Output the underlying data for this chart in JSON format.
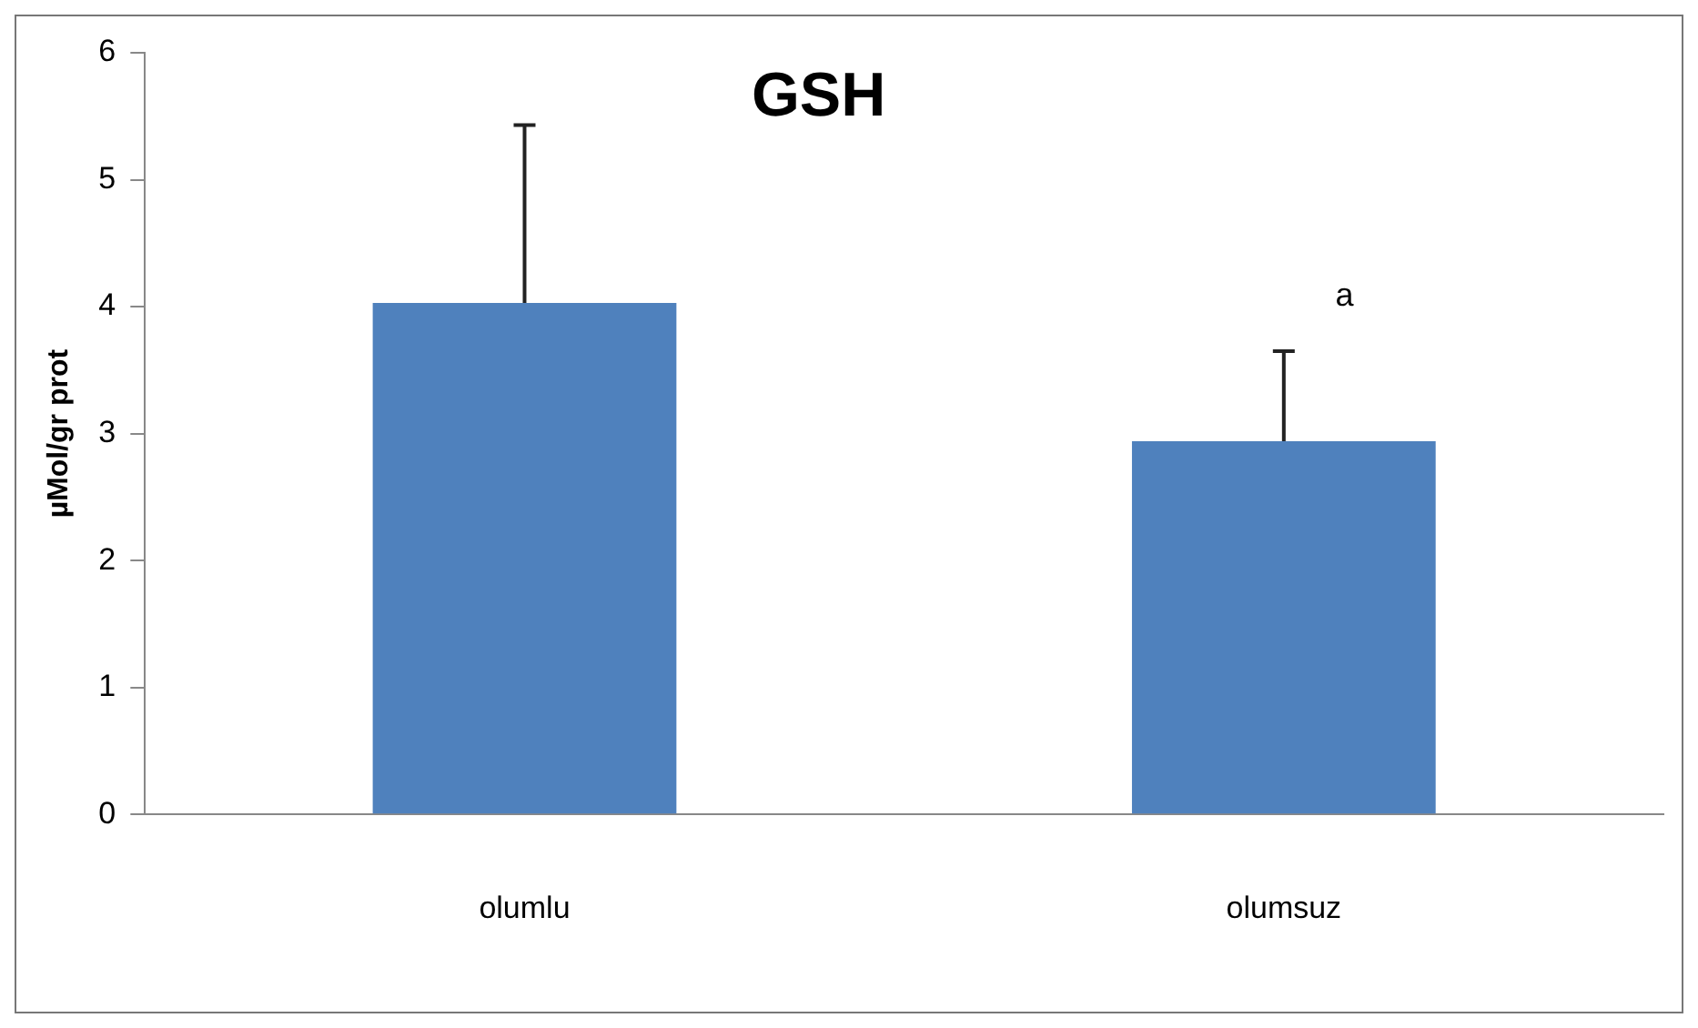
{
  "chart_data": {
    "type": "bar",
    "title": "GSH",
    "ylabel": "µMol/gr prot",
    "categories": [
      "olumlu",
      "olumsuz"
    ],
    "values": [
      4.03,
      2.94
    ],
    "errors": [
      [
        4.03,
        5.43
      ],
      [
        2.94,
        3.65
      ]
    ],
    "color": "#4f81bd",
    "ylim": [
      0,
      6
    ],
    "yticks": [
      0,
      1,
      2,
      3,
      4,
      5,
      6
    ],
    "annotations": [
      "a"
    ],
    "grid": false,
    "legend": false
  }
}
